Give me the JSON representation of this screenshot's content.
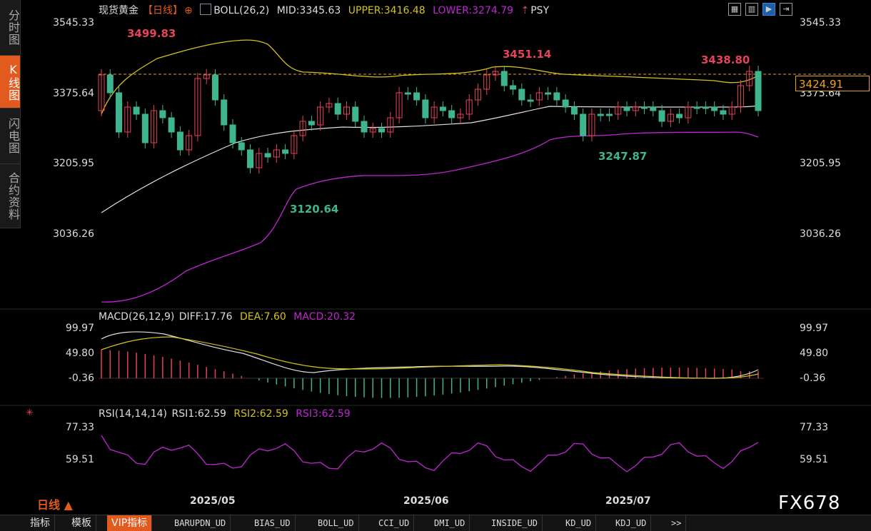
{
  "sidebar": {
    "items": [
      {
        "label": "分时图",
        "active": false
      },
      {
        "label": "K线图",
        "active": true
      },
      {
        "label": "闪电图",
        "active": false
      },
      {
        "label": "合约资料",
        "active": false
      }
    ]
  },
  "main_header": {
    "name": "现货黄金",
    "period_tag": "【日线】",
    "boll": "BOLL(26,2)",
    "mid": "MID:3345.63",
    "upper": "UPPER:3416.48",
    "lower": "LOWER:3274.79",
    "psy": "PSY"
  },
  "price_axis": {
    "left": [
      "3545.33",
      "3375.64",
      "3205.95",
      "3036.26"
    ],
    "right": [
      "3545.33",
      "3375.64",
      "3205.95",
      "3036.26"
    ]
  },
  "current_price": "3424.91",
  "annotations": {
    "high1": "3499.83",
    "high2": "3451.14",
    "high3": "3438.80",
    "low1": "3120.64",
    "low2": "3247.87"
  },
  "macd_header": {
    "name": "MACD(26,12,9)",
    "diff": "DIFF:17.76",
    "dea": "DEA:7.60",
    "macd": "MACD:20.32"
  },
  "macd_axis": {
    "left": [
      "99.97",
      "49.80",
      "-0.36"
    ],
    "right": [
      "99.97",
      "49.80",
      "-0.36"
    ]
  },
  "rsi_header": {
    "name": "RSI(14,14,14)",
    "rsi1": "RSI1:62.59",
    "rsi2": "RSI2:62.59",
    "rsi3": "RSI3:62.59"
  },
  "rsi_axis": {
    "left": [
      "77.33",
      "59.51"
    ],
    "right": [
      "77.33",
      "59.51"
    ]
  },
  "months": [
    "2025/05",
    "2025/06",
    "2025/07"
  ],
  "period_button": "日线 ▲",
  "bottom_tabs": [
    "指标",
    "模板",
    "VIP指标",
    "BARUPDN_UD",
    "BIAS_UD",
    "BOLL_UD",
    "CCI_UD",
    "DMI_UD",
    "INSIDE_UD",
    "KD_UD",
    "KDJ_UD",
    ">>"
  ],
  "brand": "FX678",
  "colors": {
    "up": "#e8425a",
    "down": "#3fb58f",
    "boll_upper": "#d4c21a",
    "boll_mid": "#e0e0e0",
    "boll_lower": "#c026d3",
    "accent": "#e25a1d"
  },
  "toolbar_icons": [
    "grid-icon",
    "layout-icon",
    "play-icon",
    "exit-icon"
  ]
}
